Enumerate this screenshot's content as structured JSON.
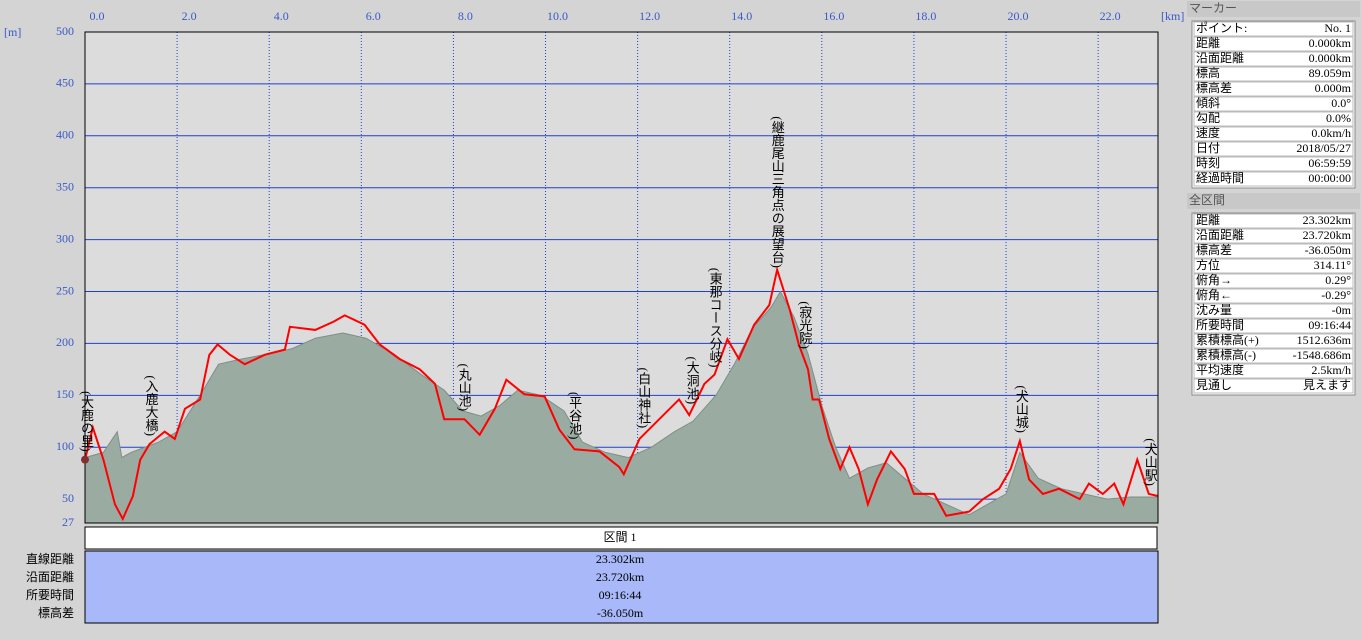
{
  "chart_data": {
    "type": "line",
    "y_unit": "[m]",
    "x_unit": "[km]",
    "xlim": [
      0,
      23.3
    ],
    "ylim": [
      27,
      500
    ],
    "xticks": [
      {
        "value": 0,
        "label": "0.0"
      },
      {
        "value": 2,
        "label": "2.0"
      },
      {
        "value": 4,
        "label": "4.0"
      },
      {
        "value": 6,
        "label": "6.0"
      },
      {
        "value": 8,
        "label": "8.0"
      },
      {
        "value": 10,
        "label": "10.0"
      },
      {
        "value": 12,
        "label": "12.0"
      },
      {
        "value": 14,
        "label": "14.0"
      },
      {
        "value": 16,
        "label": "16.0"
      },
      {
        "value": 18,
        "label": "18.0"
      },
      {
        "value": 20,
        "label": "20.0"
      },
      {
        "value": 22,
        "label": "22.0"
      }
    ],
    "yticks": [
      27,
      50,
      100,
      150,
      200,
      250,
      300,
      350,
      400,
      450,
      500
    ],
    "grid": true,
    "series": [
      {
        "color": "#9aaba2",
        "x": [
          0,
          0.4,
          0.7,
          0.8,
          1.0,
          1.3,
          1.6,
          2.0,
          2.5,
          2.9,
          3.4,
          4.0,
          4.5,
          5.0,
          5.6,
          6.1,
          6.7,
          7.3,
          7.8,
          8.2,
          8.6,
          9.0,
          9.4,
          9.9,
          10.4,
          10.8,
          11.3,
          11.8,
          12.3,
          12.8,
          13.2,
          13.7,
          14.1,
          14.5,
          14.9,
          15.1,
          15.4,
          15.7,
          16.0,
          16.3,
          16.6,
          17.0,
          17.4,
          17.8,
          18.2,
          18.7,
          19.2,
          19.6,
          20.0,
          20.3,
          20.7,
          21.2,
          21.7,
          22.2,
          22.7,
          23.3
        ],
        "values": [
          90,
          95,
          115,
          90,
          95,
          100,
          105,
          115,
          150,
          180,
          185,
          190,
          195,
          205,
          210,
          205,
          190,
          170,
          155,
          135,
          130,
          140,
          155,
          150,
          135,
          105,
          95,
          90,
          100,
          115,
          125,
          150,
          180,
          215,
          235,
          250,
          225,
          190,
          140,
          100,
          70,
          80,
          85,
          70,
          55,
          45,
          35,
          45,
          55,
          95,
          70,
          60,
          55,
          50,
          52,
          52
        ]
      },
      {
        "color": "#ff0000",
        "x": [
          0,
          0.17,
          0.4,
          0.65,
          0.82,
          1.04,
          1.2,
          1.4,
          1.73,
          1.95,
          2.17,
          2.5,
          2.7,
          2.88,
          3.15,
          3.47,
          3.9,
          4.34,
          4.45,
          5.0,
          5.4,
          5.64,
          6.07,
          6.4,
          6.83,
          7.27,
          7.6,
          7.8,
          8.24,
          8.57,
          8.9,
          9.15,
          9.54,
          9.98,
          10.3,
          10.63,
          11.17,
          11.6,
          11.7,
          12.04,
          12.47,
          12.9,
          13.12,
          13.45,
          13.67,
          13.95,
          14.2,
          14.53,
          14.86,
          15.03,
          15.3,
          15.5,
          15.7,
          15.8,
          15.94,
          16.16,
          16.4,
          16.6,
          16.8,
          17.0,
          17.2,
          17.5,
          17.8,
          18.0,
          18.44,
          18.7,
          19.2,
          19.5,
          19.85,
          20.1,
          20.3,
          20.5,
          20.8,
          21.15,
          21.6,
          21.8,
          22.1,
          22.35,
          22.55,
          22.85,
          23.1,
          23.3
        ],
        "values": [
          88,
          119,
          88,
          45,
          31,
          53,
          88,
          103,
          115,
          108,
          137,
          146,
          189,
          199,
          189,
          180,
          189,
          194,
          216,
          213,
          221,
          227,
          218,
          199,
          185,
          175,
          161,
          127,
          127,
          112,
          137,
          165,
          151,
          149,
          117,
          98,
          96,
          81,
          74,
          108,
          127,
          146,
          131,
          161,
          170,
          204,
          185,
          218,
          237,
          271,
          233,
          199,
          175,
          146,
          146,
          108,
          79,
          100,
          79,
          45,
          69,
          96,
          79,
          55,
          55,
          34,
          38,
          50,
          60,
          79,
          106,
          69,
          55,
          60,
          50,
          65,
          55,
          65,
          45,
          88,
          55,
          53
        ]
      }
    ],
    "annotations": [
      {
        "text": "(大鹿の里)",
        "x": 0
      },
      {
        "text": "(入鹿大橋)",
        "x": 1.4
      },
      {
        "text": "(丸山池)",
        "x": 8.2
      },
      {
        "text": "(平谷池)",
        "x": 10.6
      },
      {
        "text": "(白山神社)",
        "x": 12.1
      },
      {
        "text": "(大洞池)",
        "x": 13.15
      },
      {
        "text": "(東那コース分岐)",
        "x": 13.65
      },
      {
        "text": "(継鹿尾山三角点の展望台)",
        "x": 15.0
      },
      {
        "text": "(寂光院)",
        "x": 15.6
      },
      {
        "text": "(犬山城)",
        "x": 20.3
      },
      {
        "text": "(犬山駅)",
        "x": 23.1
      }
    ]
  },
  "marker_panel": {
    "title": "マーカー",
    "rows": [
      [
        "ポイント:",
        "No. 1"
      ],
      [
        "距離",
        "0.000km"
      ],
      [
        "沿面距離",
        "0.000km"
      ],
      [
        "標高",
        "89.059m"
      ],
      [
        "標高差",
        "0.000m"
      ],
      [
        "傾斜",
        "0.0°"
      ],
      [
        "勾配",
        "0.0%"
      ],
      [
        "速度",
        "0.0km/h"
      ],
      [
        "日付",
        "2018/05/27"
      ],
      [
        "時刻",
        "06:59:59"
      ],
      [
        "経過時間",
        "00:00:00"
      ]
    ]
  },
  "total_panel": {
    "title": "全区間",
    "rows": [
      [
        "距離",
        "23.302km"
      ],
      [
        "沿面距離",
        "23.720km"
      ],
      [
        "標高差",
        "-36.050m"
      ],
      [
        "方位",
        "314.11°"
      ],
      [
        "俯角→",
        "0.29°"
      ],
      [
        "俯角←",
        "-0.29°"
      ],
      [
        "沈み量",
        "-0m"
      ],
      [
        "所要時間",
        "09:16:44"
      ],
      [
        "累積標高(+)",
        "1512.636m"
      ],
      [
        "累積標高(-)",
        "-1548.686m"
      ],
      [
        "平均速度",
        "2.5km/h"
      ],
      [
        "見通し",
        "見えます"
      ]
    ]
  },
  "section_table": {
    "header": "区間 1",
    "rows": [
      [
        "直線距離",
        "23.302km"
      ],
      [
        "沿面距離",
        "23.720km"
      ],
      [
        "所要時間",
        "09:16:44"
      ],
      [
        "標高差",
        "-36.050m"
      ]
    ]
  }
}
